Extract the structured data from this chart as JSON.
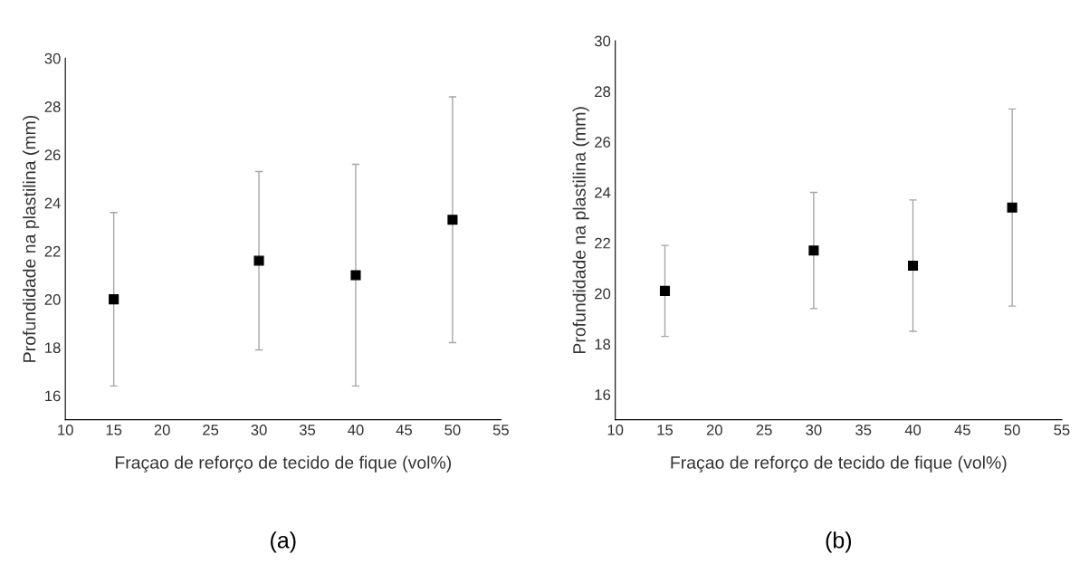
{
  "chart_data": [
    {
      "type": "scatter",
      "xlabel": "Fraçao de reforço de tecido de fique (vol%)",
      "ylabel": "Profundidade na plastilina (mm)",
      "annotations": [
        "(a)"
      ],
      "x": [
        15,
        30,
        40,
        50
      ],
      "values": [
        20.0,
        21.6,
        21.0,
        23.3
      ],
      "errors": [
        3.6,
        3.7,
        4.6,
        5.1
      ],
      "color": "#000000",
      "marker": "square",
      "xlim": [
        10,
        55
      ],
      "xticks": [
        10,
        15,
        20,
        25,
        30,
        35,
        40,
        45,
        50,
        55
      ],
      "ylim": [
        15,
        30
      ],
      "yticks": [
        16,
        18,
        20,
        22,
        24,
        26,
        28,
        30
      ],
      "grid": false,
      "legend": false
    },
    {
      "type": "scatter",
      "xlabel": "Fraçao de reforço de tecido de fique (vol%)",
      "ylabel": "Profundidade na plastilina (mm)",
      "annotations": [
        "(b)"
      ],
      "x": [
        15,
        30,
        40,
        50
      ],
      "values": [
        20.1,
        21.7,
        21.1,
        23.4
      ],
      "errors": [
        1.8,
        2.3,
        2.6,
        3.9
      ],
      "color": "#000000",
      "marker": "square",
      "xlim": [
        10,
        55
      ],
      "xticks": [
        10,
        15,
        20,
        25,
        30,
        35,
        40,
        45,
        50,
        55
      ],
      "ylim": [
        15,
        30
      ],
      "yticks": [
        16,
        18,
        20,
        22,
        24,
        26,
        28,
        30
      ],
      "grid": false,
      "legend": false
    }
  ]
}
